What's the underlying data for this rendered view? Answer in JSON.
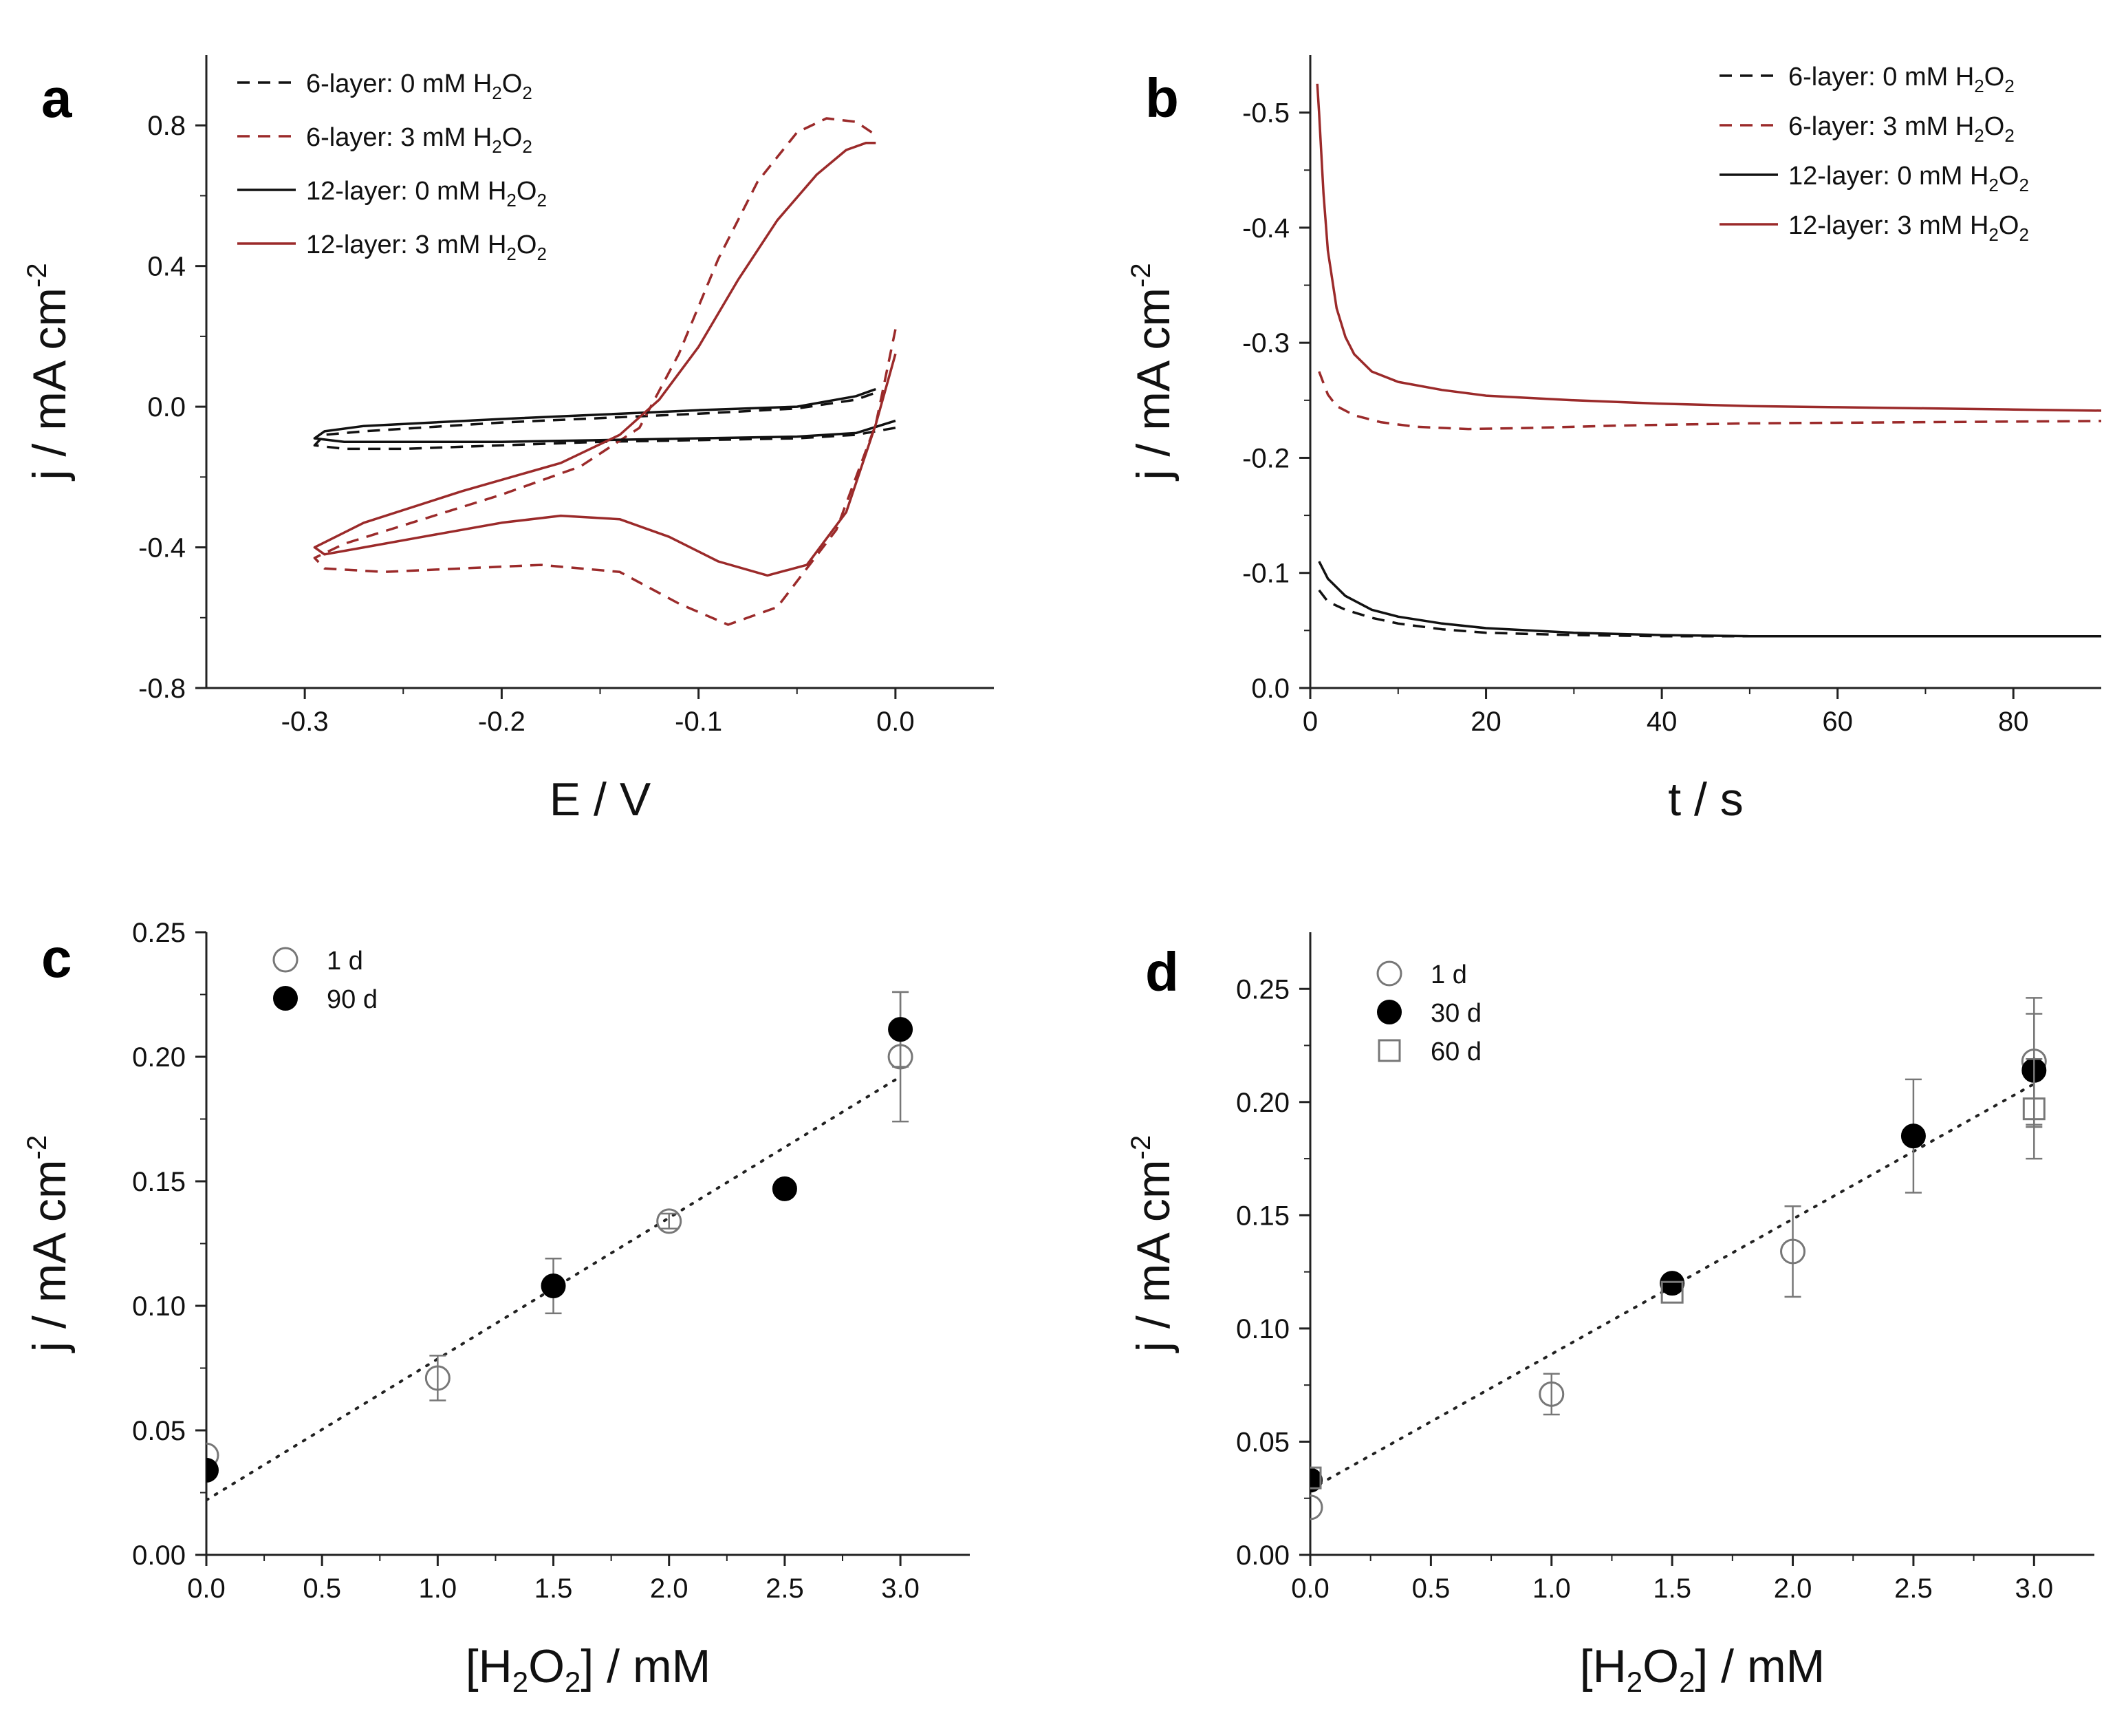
{
  "colors": {
    "black": "#111111",
    "red": "#9b2a2a",
    "gray": "#777777"
  },
  "chart_data": [
    {
      "id": "a",
      "panel_label": "a",
      "type": "line",
      "title": "",
      "xlabel": "E / V",
      "ylabel_main": "j / mA cm",
      "ylabel_sup": "-2",
      "xlim": [
        -0.35,
        0.05
      ],
      "ylim": [
        -0.8,
        1.0
      ],
      "xticks": [
        -0.3,
        -0.2,
        -0.1,
        0.0
      ],
      "xtick_labels": [
        "-0.3",
        "-0.2",
        "-0.1",
        "0.0"
      ],
      "yticks": [
        -0.8,
        -0.4,
        0.0,
        0.4,
        0.8
      ],
      "ytick_labels": [
        "-0.8",
        "-0.4",
        "0.0",
        "0.4",
        "0.8"
      ],
      "legend": [
        {
          "pre": "6-layer: 0 mM H",
          "sub1": "2",
          "mid": "O",
          "sub2": "2",
          "color": "black",
          "dash": true
        },
        {
          "pre": "6-layer: 3 mM H",
          "sub1": "2",
          "mid": "O",
          "sub2": "2",
          "color": "red",
          "dash": true
        },
        {
          "pre": "12-layer: 0 mM H",
          "sub1": "2",
          "mid": "O",
          "sub2": "2",
          "color": "black",
          "dash": false
        },
        {
          "pre": "12-layer: 3 mM H",
          "sub1": "2",
          "mid": "O",
          "sub2": "2",
          "color": "red",
          "dash": false
        }
      ],
      "series": [
        {
          "name": "6-layer: 0 mM H2O2",
          "color": "black",
          "dash": true,
          "x": [
            0.0,
            -0.02,
            -0.05,
            -0.1,
            -0.15,
            -0.2,
            -0.25,
            -0.28,
            -0.295,
            -0.29,
            -0.27,
            -0.2,
            -0.1,
            -0.05,
            -0.02,
            -0.01
          ],
          "y": [
            -0.06,
            -0.08,
            -0.09,
            -0.095,
            -0.1,
            -0.11,
            -0.12,
            -0.12,
            -0.11,
            -0.08,
            -0.07,
            -0.045,
            -0.02,
            -0.005,
            0.02,
            0.04
          ]
        },
        {
          "name": "6-layer: 3 mM H2O2",
          "color": "red",
          "dash": true,
          "x": [
            0.0,
            -0.01,
            -0.03,
            -0.06,
            -0.085,
            -0.11,
            -0.14,
            -0.18,
            -0.22,
            -0.26,
            -0.29,
            -0.295,
            -0.28,
            -0.24,
            -0.2,
            -0.16,
            -0.13,
            -0.11,
            -0.09,
            -0.07,
            -0.05,
            -0.035,
            -0.02,
            -0.012
          ],
          "y": [
            0.22,
            -0.05,
            -0.35,
            -0.57,
            -0.62,
            -0.56,
            -0.47,
            -0.45,
            -0.46,
            -0.47,
            -0.46,
            -0.43,
            -0.39,
            -0.32,
            -0.25,
            -0.17,
            -0.06,
            0.15,
            0.42,
            0.64,
            0.78,
            0.82,
            0.81,
            0.78
          ]
        },
        {
          "name": "12-layer: 0 mM H2O2",
          "color": "black",
          "dash": false,
          "x": [
            0.0,
            -0.02,
            -0.05,
            -0.1,
            -0.15,
            -0.2,
            -0.25,
            -0.28,
            -0.295,
            -0.29,
            -0.27,
            -0.2,
            -0.1,
            -0.05,
            -0.02,
            -0.01
          ],
          "y": [
            -0.04,
            -0.075,
            -0.085,
            -0.09,
            -0.095,
            -0.1,
            -0.1,
            -0.1,
            -0.09,
            -0.07,
            -0.055,
            -0.035,
            -0.01,
            0.0,
            0.03,
            0.05
          ]
        },
        {
          "name": "12-layer: 3 mM H2O2",
          "color": "red",
          "dash": false,
          "x": [
            0.0,
            -0.01,
            -0.025,
            -0.045,
            -0.065,
            -0.09,
            -0.115,
            -0.14,
            -0.17,
            -0.2,
            -0.24,
            -0.27,
            -0.29,
            -0.295,
            -0.27,
            -0.22,
            -0.17,
            -0.14,
            -0.12,
            -0.1,
            -0.08,
            -0.06,
            -0.04,
            -0.025,
            -0.015,
            -0.01
          ],
          "y": [
            0.15,
            -0.05,
            -0.3,
            -0.45,
            -0.48,
            -0.44,
            -0.37,
            -0.32,
            -0.31,
            -0.33,
            -0.37,
            -0.4,
            -0.42,
            -0.4,
            -0.33,
            -0.24,
            -0.16,
            -0.08,
            0.02,
            0.17,
            0.36,
            0.53,
            0.66,
            0.73,
            0.75,
            0.75
          ]
        }
      ]
    },
    {
      "id": "b",
      "panel_label": "b",
      "type": "line",
      "title": "",
      "xlabel": "t / s",
      "ylabel_main": "j / mA cm",
      "ylabel_sup": "-2",
      "xlim": [
        0,
        90
      ],
      "ylim": [
        0.0,
        -0.55
      ],
      "xticks": [
        0,
        20,
        40,
        60,
        80
      ],
      "xtick_labels": [
        "0",
        "20",
        "40",
        "60",
        "80"
      ],
      "yticks": [
        0.0,
        -0.1,
        -0.2,
        -0.3,
        -0.4,
        -0.5
      ],
      "ytick_labels": [
        "0.0",
        "-0.1",
        "-0.2",
        "-0.3",
        "-0.4",
        "-0.5"
      ],
      "legend": [
        {
          "pre": "6-layer: 0 mM H",
          "sub1": "2",
          "mid": "O",
          "sub2": "2",
          "color": "black",
          "dash": true
        },
        {
          "pre": "6-layer: 3 mM H",
          "sub1": "2",
          "mid": "O",
          "sub2": "2",
          "color": "red",
          "dash": true
        },
        {
          "pre": "12-layer: 0 mM H",
          "sub1": "2",
          "mid": "O",
          "sub2": "2",
          "color": "black",
          "dash": false
        },
        {
          "pre": "12-layer: 3 mM H",
          "sub1": "2",
          "mid": "O",
          "sub2": "2",
          "color": "red",
          "dash": false
        }
      ],
      "series": [
        {
          "name": "6-layer: 0 mM H2O2",
          "color": "black",
          "dash": true,
          "x": [
            1,
            2,
            4,
            7,
            10,
            15,
            20,
            30,
            40,
            50,
            60,
            70,
            80,
            90
          ],
          "y": [
            -0.085,
            -0.075,
            -0.068,
            -0.061,
            -0.056,
            -0.051,
            -0.048,
            -0.046,
            -0.045,
            -0.045,
            -0.045,
            -0.045,
            -0.045,
            -0.045
          ]
        },
        {
          "name": "6-layer: 3 mM H2O2",
          "color": "red",
          "dash": true,
          "x": [
            1,
            2,
            3,
            5,
            8,
            12,
            18,
            25,
            35,
            50,
            70,
            90
          ],
          "y": [
            -0.275,
            -0.255,
            -0.245,
            -0.237,
            -0.231,
            -0.227,
            -0.225,
            -0.226,
            -0.228,
            -0.23,
            -0.231,
            -0.232
          ]
        },
        {
          "name": "12-layer: 0 mM H2O2",
          "color": "black",
          "dash": false,
          "x": [
            1,
            2,
            4,
            7,
            10,
            15,
            20,
            30,
            40,
            50,
            60,
            70,
            80,
            90
          ],
          "y": [
            -0.11,
            -0.095,
            -0.08,
            -0.068,
            -0.062,
            -0.056,
            -0.052,
            -0.048,
            -0.046,
            -0.045,
            -0.045,
            -0.045,
            -0.045,
            -0.045
          ]
        },
        {
          "name": "12-layer: 3 mM H2O2",
          "color": "red",
          "dash": false,
          "x": [
            0.8,
            1,
            1.5,
            2,
            3,
            4,
            5,
            7,
            10,
            15,
            20,
            30,
            40,
            50,
            60,
            70,
            80,
            90
          ],
          "y": [
            -0.525,
            -0.5,
            -0.43,
            -0.38,
            -0.33,
            -0.305,
            -0.29,
            -0.275,
            -0.266,
            -0.259,
            -0.254,
            -0.25,
            -0.247,
            -0.245,
            -0.244,
            -0.243,
            -0.242,
            -0.241
          ]
        }
      ]
    },
    {
      "id": "c",
      "panel_label": "c",
      "type": "scatter",
      "title": "",
      "xlabel_pre": "[H",
      "xlabel_s1": "2",
      "xlabel_mid": "O",
      "xlabel_s2": "2",
      "xlabel_post": "] / mM",
      "ylabel_main": "j / mA cm",
      "ylabel_sup": "-2",
      "xlim": [
        0.0,
        3.3
      ],
      "ylim": [
        0.0,
        0.25
      ],
      "xticks": [
        0.0,
        0.5,
        1.0,
        1.5,
        2.0,
        2.5,
        3.0
      ],
      "xtick_labels": [
        "0.0",
        "0.5",
        "1.0",
        "1.5",
        "2.0",
        "2.5",
        "3.0"
      ],
      "yticks": [
        0.0,
        0.05,
        0.1,
        0.15,
        0.2,
        0.25
      ],
      "ytick_labels": [
        "0.00",
        "0.05",
        "0.10",
        "0.15",
        "0.20",
        "0.25"
      ],
      "fit": {
        "x": [
          0.0,
          3.0
        ],
        "y": [
          0.022,
          0.192
        ]
      },
      "legend": [
        {
          "label": "1 d",
          "marker": "open-circle"
        },
        {
          "label": "90 d",
          "marker": "filled-circle"
        }
      ],
      "series": [
        {
          "name": "1 d",
          "marker": "open-circle",
          "x": [
            0.0,
            1.0,
            2.0,
            3.0
          ],
          "y": [
            0.04,
            0.071,
            0.134,
            0.2
          ],
          "err": [
            0.0,
            0.009,
            0.003,
            0.026
          ]
        },
        {
          "name": "90 d",
          "marker": "filled-circle",
          "x": [
            0.0,
            1.5,
            2.5,
            3.0
          ],
          "y": [
            0.034,
            0.108,
            0.147,
            0.211
          ],
          "err": [
            0.0,
            0.011,
            0.0,
            0.015
          ]
        }
      ]
    },
    {
      "id": "d",
      "panel_label": "d",
      "type": "scatter",
      "title": "",
      "xlabel_pre": "[H",
      "xlabel_s1": "2",
      "xlabel_mid": "O",
      "xlabel_s2": "2",
      "xlabel_post": "] / mM",
      "ylabel_main": "j / mA cm",
      "ylabel_sup": "-2",
      "xlim": [
        0.0,
        3.25
      ],
      "ylim": [
        0.0,
        0.275
      ],
      "xticks": [
        0.0,
        0.5,
        1.0,
        1.5,
        2.0,
        2.5,
        3.0
      ],
      "xtick_labels": [
        "0.0",
        "0.5",
        "1.0",
        "1.5",
        "2.0",
        "2.5",
        "3.0"
      ],
      "yticks": [
        0.0,
        0.05,
        0.1,
        0.15,
        0.2,
        0.25
      ],
      "ytick_labels": [
        "0.00",
        "0.05",
        "0.10",
        "0.15",
        "0.20",
        "0.25"
      ],
      "fit": {
        "x": [
          0.0,
          3.0
        ],
        "y": [
          0.029,
          0.208
        ]
      },
      "legend": [
        {
          "label": "1 d",
          "marker": "open-circle"
        },
        {
          "label": "30 d",
          "marker": "filled-circle"
        },
        {
          "label": "60 d",
          "marker": "open-square"
        }
      ],
      "series": [
        {
          "name": "1 d",
          "marker": "open-circle",
          "x": [
            0.0,
            1.0,
            2.0,
            3.0
          ],
          "y": [
            0.021,
            0.071,
            0.134,
            0.218
          ],
          "err": [
            0.0,
            0.009,
            0.02,
            0.028
          ]
        },
        {
          "name": "30 d",
          "marker": "filled-circle",
          "x": [
            0.0,
            1.5,
            2.5,
            3.0
          ],
          "y": [
            0.033,
            0.12,
            0.185,
            0.214
          ],
          "err": [
            0.0,
            0.0,
            0.025,
            0.025
          ]
        },
        {
          "name": "60 d",
          "marker": "open-square",
          "x": [
            0.0,
            1.5,
            3.0
          ],
          "y": [
            0.034,
            0.116,
            0.197
          ],
          "err": [
            0.0,
            0.0,
            0.022
          ]
        }
      ]
    }
  ]
}
